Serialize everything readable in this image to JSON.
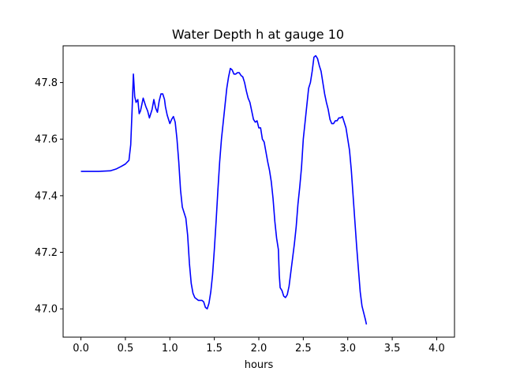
{
  "chart_data": {
    "type": "line",
    "title": "Water Depth h at gauge 10",
    "xlabel": "hours",
    "ylabel": "",
    "xlim": [
      -0.2,
      4.2
    ],
    "ylim": [
      46.9,
      47.93
    ],
    "grid": false,
    "x_ticks": [
      0.0,
      0.5,
      1.0,
      1.5,
      2.0,
      2.5,
      3.0,
      3.5,
      4.0
    ],
    "x_tick_labels": [
      "0.0",
      "0.5",
      "1.0",
      "1.5",
      "2.0",
      "2.5",
      "3.0",
      "3.5",
      "4.0"
    ],
    "y_ticks": [
      47.0,
      47.2,
      47.4,
      47.6,
      47.8
    ],
    "y_tick_labels": [
      "47.0",
      "47.2",
      "47.4",
      "47.6",
      "47.8"
    ],
    "series": [
      {
        "color": "#0000ff",
        "points": [
          [
            0.0,
            47.486
          ],
          [
            0.1,
            47.486
          ],
          [
            0.2,
            47.486
          ],
          [
            0.33,
            47.488
          ],
          [
            0.4,
            47.495
          ],
          [
            0.45,
            47.503
          ],
          [
            0.5,
            47.512
          ],
          [
            0.54,
            47.525
          ],
          [
            0.56,
            47.58
          ],
          [
            0.575,
            47.7
          ],
          [
            0.59,
            47.83
          ],
          [
            0.605,
            47.75
          ],
          [
            0.62,
            47.73
          ],
          [
            0.64,
            47.74
          ],
          [
            0.655,
            47.69
          ],
          [
            0.67,
            47.7
          ],
          [
            0.7,
            47.745
          ],
          [
            0.73,
            47.715
          ],
          [
            0.75,
            47.7
          ],
          [
            0.77,
            47.675
          ],
          [
            0.8,
            47.705
          ],
          [
            0.82,
            47.74
          ],
          [
            0.84,
            47.71
          ],
          [
            0.86,
            47.695
          ],
          [
            0.88,
            47.735
          ],
          [
            0.9,
            47.76
          ],
          [
            0.92,
            47.76
          ],
          [
            0.94,
            47.74
          ],
          [
            0.95,
            47.715
          ],
          [
            0.97,
            47.685
          ],
          [
            1.0,
            47.655
          ],
          [
            1.02,
            47.67
          ],
          [
            1.04,
            47.68
          ],
          [
            1.06,
            47.66
          ],
          [
            1.08,
            47.6
          ],
          [
            1.1,
            47.52
          ],
          [
            1.12,
            47.42
          ],
          [
            1.14,
            47.36
          ],
          [
            1.16,
            47.34
          ],
          [
            1.18,
            47.32
          ],
          [
            1.2,
            47.26
          ],
          [
            1.22,
            47.16
          ],
          [
            1.24,
            47.09
          ],
          [
            1.26,
            47.055
          ],
          [
            1.28,
            47.04
          ],
          [
            1.3,
            47.035
          ],
          [
            1.32,
            47.03
          ],
          [
            1.34,
            47.03
          ],
          [
            1.36,
            47.03
          ],
          [
            1.38,
            47.025
          ],
          [
            1.4,
            47.005
          ],
          [
            1.42,
            47.0
          ],
          [
            1.44,
            47.02
          ],
          [
            1.46,
            47.06
          ],
          [
            1.48,
            47.12
          ],
          [
            1.5,
            47.21
          ],
          [
            1.52,
            47.31
          ],
          [
            1.54,
            47.42
          ],
          [
            1.56,
            47.52
          ],
          [
            1.58,
            47.6
          ],
          [
            1.6,
            47.66
          ],
          [
            1.62,
            47.72
          ],
          [
            1.64,
            47.78
          ],
          [
            1.66,
            47.82
          ],
          [
            1.68,
            47.85
          ],
          [
            1.7,
            47.845
          ],
          [
            1.72,
            47.83
          ],
          [
            1.74,
            47.83
          ],
          [
            1.76,
            47.835
          ],
          [
            1.78,
            47.835
          ],
          [
            1.8,
            47.825
          ],
          [
            1.82,
            47.82
          ],
          [
            1.84,
            47.8
          ],
          [
            1.86,
            47.77
          ],
          [
            1.88,
            47.745
          ],
          [
            1.9,
            47.73
          ],
          [
            1.92,
            47.7
          ],
          [
            1.94,
            47.67
          ],
          [
            1.96,
            47.66
          ],
          [
            1.98,
            47.665
          ],
          [
            2.0,
            47.64
          ],
          [
            2.02,
            47.64
          ],
          [
            2.04,
            47.6
          ],
          [
            2.06,
            47.59
          ],
          [
            2.08,
            47.555
          ],
          [
            2.1,
            47.52
          ],
          [
            2.12,
            47.49
          ],
          [
            2.14,
            47.45
          ],
          [
            2.16,
            47.39
          ],
          [
            2.18,
            47.31
          ],
          [
            2.2,
            47.25
          ],
          [
            2.22,
            47.21
          ],
          [
            2.23,
            47.12
          ],
          [
            2.24,
            47.075
          ],
          [
            2.26,
            47.065
          ],
          [
            2.28,
            47.045
          ],
          [
            2.3,
            47.04
          ],
          [
            2.32,
            47.05
          ],
          [
            2.34,
            47.08
          ],
          [
            2.36,
            47.13
          ],
          [
            2.38,
            47.18
          ],
          [
            2.4,
            47.23
          ],
          [
            2.42,
            47.29
          ],
          [
            2.44,
            47.37
          ],
          [
            2.46,
            47.43
          ],
          [
            2.48,
            47.5
          ],
          [
            2.5,
            47.6
          ],
          [
            2.52,
            47.66
          ],
          [
            2.54,
            47.72
          ],
          [
            2.56,
            47.78
          ],
          [
            2.58,
            47.8
          ],
          [
            2.6,
            47.84
          ],
          [
            2.62,
            47.89
          ],
          [
            2.64,
            47.895
          ],
          [
            2.66,
            47.885
          ],
          [
            2.68,
            47.86
          ],
          [
            2.7,
            47.84
          ],
          [
            2.72,
            47.8
          ],
          [
            2.74,
            47.76
          ],
          [
            2.76,
            47.73
          ],
          [
            2.78,
            47.705
          ],
          [
            2.8,
            47.67
          ],
          [
            2.82,
            47.655
          ],
          [
            2.84,
            47.655
          ],
          [
            2.86,
            47.665
          ],
          [
            2.88,
            47.665
          ],
          [
            2.9,
            47.675
          ],
          [
            2.92,
            47.675
          ],
          [
            2.94,
            47.68
          ],
          [
            2.96,
            47.66
          ],
          [
            2.98,
            47.64
          ],
          [
            3.0,
            47.6
          ],
          [
            3.02,
            47.56
          ],
          [
            3.04,
            47.49
          ],
          [
            3.06,
            47.4
          ],
          [
            3.08,
            47.31
          ],
          [
            3.1,
            47.22
          ],
          [
            3.12,
            47.14
          ],
          [
            3.14,
            47.06
          ],
          [
            3.16,
            47.01
          ],
          [
            3.18,
            46.985
          ],
          [
            3.2,
            46.96
          ],
          [
            3.21,
            46.945
          ]
        ]
      }
    ]
  }
}
